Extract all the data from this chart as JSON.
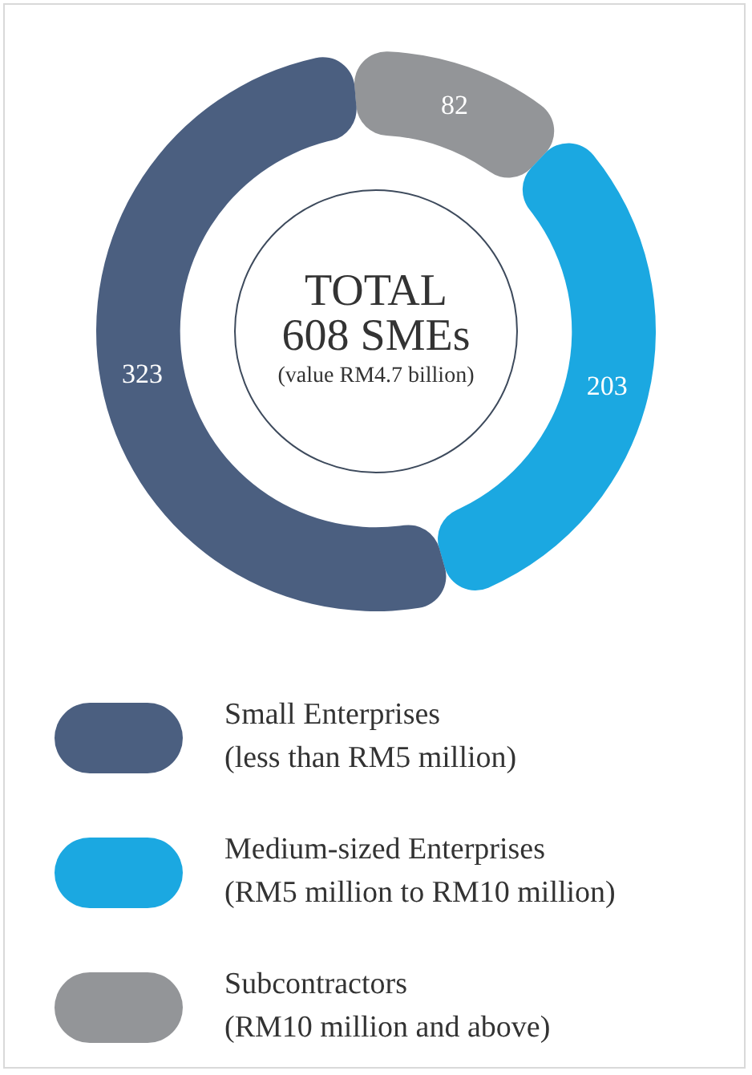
{
  "chart_data": {
    "type": "donut",
    "title": "TOTAL",
    "subtitle": "608 SMEs",
    "annotations": [
      "(value RM4.7 billion)"
    ],
    "categories": [
      "Small Enterprises\n(less than RM5 million)",
      "Medium-sized Enterprises\n(RM5 million to RM10 million)",
      "Subcontractors\n(RM10 million and above)"
    ],
    "values": [
      323,
      203,
      82
    ],
    "colors": [
      "#4b5f80",
      "#1ba8e1",
      "#939598"
    ],
    "data_labels": true,
    "legend": "bottom"
  }
}
